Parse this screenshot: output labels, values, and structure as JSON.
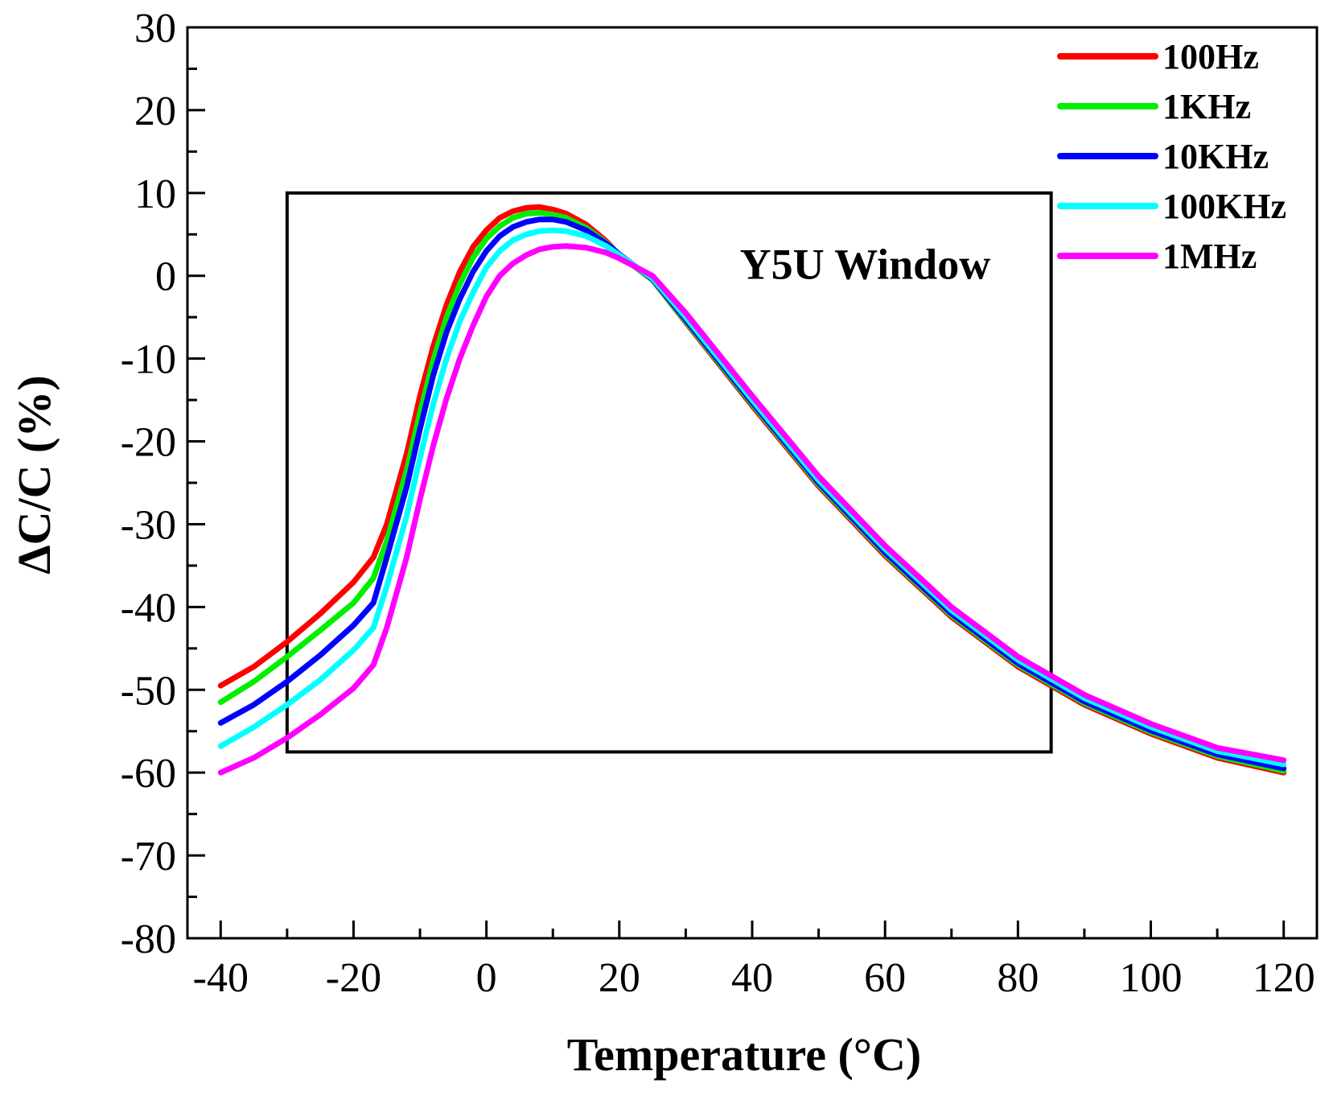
{
  "chart_data": {
    "type": "line",
    "title": "",
    "xlabel": "Temperature (°C)",
    "ylabel": "ΔC/C (%)",
    "xlim": [
      -45,
      125
    ],
    "ylim": [
      -80,
      30
    ],
    "xticks": [
      -40,
      -20,
      0,
      20,
      40,
      60,
      80,
      100,
      120
    ],
    "yticks": [
      30,
      20,
      10,
      0,
      -10,
      -20,
      -30,
      -40,
      -50,
      -60,
      -70,
      -80
    ],
    "xtick_labels": [
      "-40",
      "-20",
      "0",
      "20",
      "40",
      "60",
      "80",
      "100",
      "120"
    ],
    "ytick_labels": [
      "30",
      "20",
      "10",
      "0",
      "-10",
      "-20",
      "-30",
      "-40",
      "-50",
      "-60",
      "-70",
      "-80"
    ],
    "legend_position": "top-right",
    "series": [
      {
        "name": "100Hz",
        "color": "#ff0000",
        "x": [
          -40,
          -35,
          -30,
          -25,
          -20,
          -17,
          -15,
          -12,
          -10,
          -8,
          -6,
          -4,
          -2,
          0,
          2,
          4,
          6,
          8,
          10,
          12,
          15,
          18,
          20,
          25,
          30,
          40,
          50,
          60,
          70,
          80,
          90,
          100,
          110,
          120
        ],
        "y": [
          -49.5,
          -47.2,
          -44.2,
          -40.8,
          -37,
          -34,
          -30,
          -21.5,
          -14.5,
          -8.5,
          -3.5,
          0.5,
          3.5,
          5.5,
          7,
          7.8,
          8.2,
          8.3,
          8,
          7.5,
          6.2,
          4.2,
          2.5,
          -0.5,
          -5.6,
          -15.7,
          -25.4,
          -33.8,
          -41.2,
          -47.2,
          -51.8,
          -55.3,
          -58.2,
          -60
        ]
      },
      {
        "name": "1KHz",
        "color": "#00ee00",
        "x": [
          -40,
          -35,
          -30,
          -25,
          -20,
          -17,
          -15,
          -12,
          -10,
          -8,
          -6,
          -4,
          -2,
          0,
          2,
          4,
          6,
          8,
          10,
          12,
          15,
          18,
          20,
          25,
          30,
          40,
          50,
          60,
          70,
          80,
          90,
          100,
          110,
          120
        ],
        "y": [
          -51.5,
          -49,
          -46,
          -42.8,
          -39.5,
          -36.5,
          -32,
          -23.5,
          -16.5,
          -10.2,
          -5,
          -1,
          2.2,
          4.5,
          6,
          7,
          7.5,
          7.6,
          7.4,
          7,
          5.8,
          4,
          2.5,
          -0.5,
          -5.5,
          -15.5,
          -25.2,
          -33.6,
          -41,
          -47,
          -51.6,
          -55.1,
          -58,
          -59.8
        ]
      },
      {
        "name": "10KHz",
        "color": "#0000ff",
        "x": [
          -40,
          -35,
          -30,
          -25,
          -20,
          -17,
          -15,
          -12,
          -10,
          -8,
          -6,
          -4,
          -2,
          0,
          2,
          4,
          6,
          8,
          10,
          12,
          15,
          18,
          20,
          25,
          30,
          40,
          50,
          60,
          70,
          80,
          90,
          100,
          110,
          120
        ],
        "y": [
          -54,
          -51.8,
          -49,
          -45.8,
          -42.2,
          -39.5,
          -34,
          -25.5,
          -18.5,
          -12,
          -6.8,
          -2.8,
          0.5,
          3,
          4.8,
          5.9,
          6.5,
          6.8,
          6.8,
          6.5,
          5.5,
          3.9,
          2.6,
          -0.4,
          -5.3,
          -15.3,
          -25,
          -33.4,
          -40.8,
          -46.8,
          -51.4,
          -54.9,
          -57.8,
          -59.5
        ]
      },
      {
        "name": "100KHz",
        "color": "#00ffff",
        "x": [
          -40,
          -35,
          -30,
          -25,
          -20,
          -17,
          -15,
          -12,
          -10,
          -8,
          -6,
          -4,
          -2,
          0,
          2,
          4,
          6,
          8,
          10,
          12,
          15,
          18,
          20,
          25,
          30,
          40,
          50,
          60,
          70,
          80,
          90,
          100,
          110,
          120
        ],
        "y": [
          -56.8,
          -54.5,
          -51.8,
          -48.8,
          -45.2,
          -42.5,
          -37.5,
          -29,
          -22,
          -15.5,
          -10,
          -5.5,
          -2,
          1,
          3,
          4.3,
          5,
          5.4,
          5.5,
          5.4,
          4.8,
          3.6,
          2.5,
          -0.3,
          -5,
          -15,
          -24.7,
          -33,
          -40.4,
          -46.4,
          -51,
          -54.5,
          -57.4,
          -59
        ]
      },
      {
        "name": "1MHz",
        "color": "#ff00ff",
        "x": [
          -40,
          -35,
          -30,
          -25,
          -20,
          -17,
          -15,
          -12,
          -10,
          -8,
          -6,
          -4,
          -2,
          0,
          2,
          4,
          6,
          8,
          10,
          12,
          15,
          18,
          20,
          25,
          30,
          40,
          50,
          60,
          70,
          80,
          90,
          100,
          110,
          120
        ],
        "y": [
          -60,
          -58.2,
          -55.8,
          -53,
          -49.8,
          -47,
          -42.5,
          -34,
          -27,
          -20.5,
          -14.8,
          -10,
          -6,
          -2.5,
          0,
          1.5,
          2.5,
          3.2,
          3.5,
          3.6,
          3.4,
          2.8,
          2.1,
          0,
          -4.5,
          -14.5,
          -24.2,
          -32.6,
          -40,
          -46,
          -50.6,
          -54.1,
          -57,
          -58.5
        ]
      }
    ],
    "window_box": {
      "x_min": -30,
      "x_max": 85,
      "y_min": -57.5,
      "y_max": 10,
      "label": "Y5U Window"
    }
  }
}
